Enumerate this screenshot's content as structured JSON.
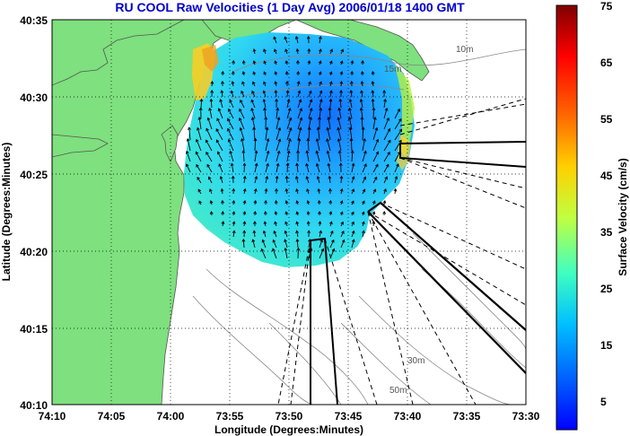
{
  "title": "RU COOL Raw Velocities (1 Day Avg) 2006/01/18 1400 GMT",
  "axes": {
    "xlabel": "Longitude (Degrees:Minutes)",
    "ylabel": "Latitude (Degrees:Minutes)",
    "xticks": [
      "74:10",
      "74:05",
      "74:00",
      "73:55",
      "73:50",
      "73:45",
      "73:40",
      "73:35",
      "73:30"
    ],
    "yticks": [
      "40:35",
      "40:30",
      "40:25",
      "40:20",
      "40:15",
      "40:10"
    ],
    "grid": true
  },
  "colorbar": {
    "label": "Surface Velocity (cm/s)",
    "ticks": [
      "75",
      "65",
      "55",
      "45",
      "35",
      "25",
      "15",
      "5"
    ],
    "min": 0,
    "max": 75
  },
  "contour_labels": [
    "10m",
    "15m",
    "30m",
    "50m"
  ],
  "colors": {
    "land": "#7ee07e",
    "water": "#ffffff",
    "title": "#0000cc"
  }
}
